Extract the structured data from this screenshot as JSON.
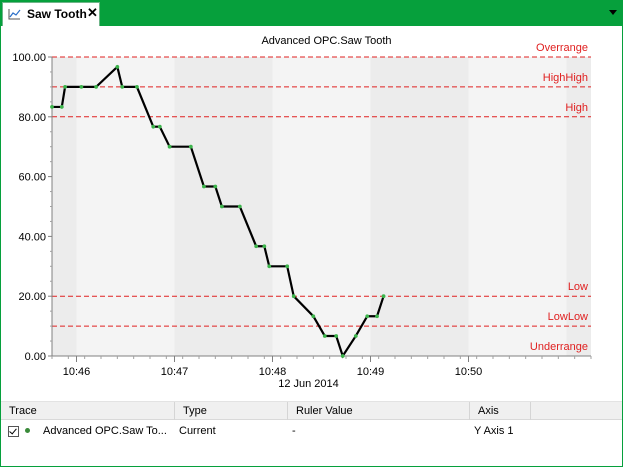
{
  "tab": {
    "title": "Saw Tooth",
    "close_label": "✕",
    "icon": "line-chart-icon"
  },
  "menu": {
    "icon": "dropdown-arrow-icon"
  },
  "chart_data": {
    "type": "line",
    "title": "Advanced OPC.Saw Tooth",
    "date_label": "12 Jun 2014",
    "ylim": [
      0,
      100
    ],
    "xlim": [
      "10:45:45",
      "10:51:15"
    ],
    "grid": false,
    "y_ticks": [
      "0.00",
      "20.00",
      "40.00",
      "60.00",
      "80.00",
      "100.00"
    ],
    "x_ticks": [
      "10:46",
      "10:47",
      "10:48",
      "10:49",
      "10:50"
    ],
    "limits": [
      {
        "name": "Overrange",
        "value": 100
      },
      {
        "name": "HighHigh",
        "value": 90
      },
      {
        "name": "High",
        "value": 80
      },
      {
        "name": "Low",
        "value": 20
      },
      {
        "name": "LowLow",
        "value": 10
      },
      {
        "name": "Underrange",
        "value": 0
      }
    ],
    "colors": {
      "trace": "#000000",
      "marker": "#3cb44b",
      "limit": "#e02020",
      "limit_text": "#e02020"
    },
    "series": [
      {
        "values": [
          [
            "10:45:45",
            83.3
          ],
          [
            "10:45:51",
            83.3
          ],
          [
            "10:45:53",
            90.0
          ],
          [
            "10:46:03",
            90.0
          ],
          [
            "10:46:12",
            90.0
          ],
          [
            "10:46:25",
            96.7
          ],
          [
            "10:46:28",
            90.0
          ],
          [
            "10:46:37",
            90.0
          ],
          [
            "10:46:47",
            76.7
          ],
          [
            "10:46:51",
            76.7
          ],
          [
            "10:46:57",
            70.0
          ],
          [
            "10:47:10",
            70.0
          ],
          [
            "10:47:18",
            56.7
          ],
          [
            "10:47:25",
            56.7
          ],
          [
            "10:47:29",
            50.0
          ],
          [
            "10:47:40",
            50.0
          ],
          [
            "10:47:50",
            36.7
          ],
          [
            "10:47:55",
            36.7
          ],
          [
            "10:47:58",
            30.0
          ],
          [
            "10:48:09",
            30.0
          ],
          [
            "10:48:13",
            20.0
          ],
          [
            "10:48:25",
            13.3
          ],
          [
            "10:48:32",
            6.7
          ],
          [
            "10:48:39",
            6.7
          ],
          [
            "10:48:43",
            0.0
          ],
          [
            "10:48:51",
            6.7
          ],
          [
            "10:48:58",
            13.3
          ],
          [
            "10:49:04",
            13.3
          ],
          [
            "10:49:08",
            20.0
          ]
        ]
      }
    ]
  },
  "grid": {
    "columns": [
      "Trace",
      "Type",
      "Ruler Value",
      "Axis"
    ],
    "rows": [
      {
        "checked": true,
        "trace": "Advanced OPC.Saw To...",
        "type": "Current",
        "ruler_value": "-",
        "axis": "Y Axis 1"
      }
    ]
  }
}
